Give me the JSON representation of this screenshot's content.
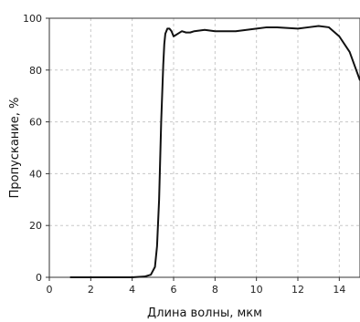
{
  "chart_data": {
    "type": "line",
    "xlabel": "Длина волны, мкм",
    "ylabel": "Пропускание, %",
    "xlim": [
      0,
      15
    ],
    "ylim": [
      0,
      100
    ],
    "xticks": [
      0,
      2,
      4,
      6,
      8,
      10,
      12,
      14
    ],
    "yticks": [
      0,
      20,
      40,
      60,
      80,
      100
    ],
    "grid": true,
    "legend": "none",
    "line_color": "#111111",
    "series": [
      {
        "x": [
          1.0,
          2.0,
          3.0,
          4.0,
          4.6,
          4.9,
          5.1,
          5.2,
          5.3,
          5.4,
          5.5,
          5.55,
          5.6,
          5.7,
          5.8,
          5.9,
          6.0,
          6.2,
          6.4,
          6.6,
          6.8,
          7.0,
          7.5,
          8.0,
          9.0,
          10.0,
          10.5,
          11.0,
          12.0,
          12.5,
          13.0,
          13.5,
          14.0,
          14.5,
          15.0
        ],
        "y": [
          0,
          0,
          0,
          0,
          0.3,
          1,
          4,
          12,
          30,
          60,
          82,
          90,
          94,
          96,
          96,
          95,
          93,
          94,
          95,
          94.5,
          94.5,
          95,
          95.5,
          95,
          95,
          96,
          96.5,
          96.5,
          96,
          96.5,
          97,
          96.5,
          93,
          87,
          76
        ]
      }
    ]
  }
}
